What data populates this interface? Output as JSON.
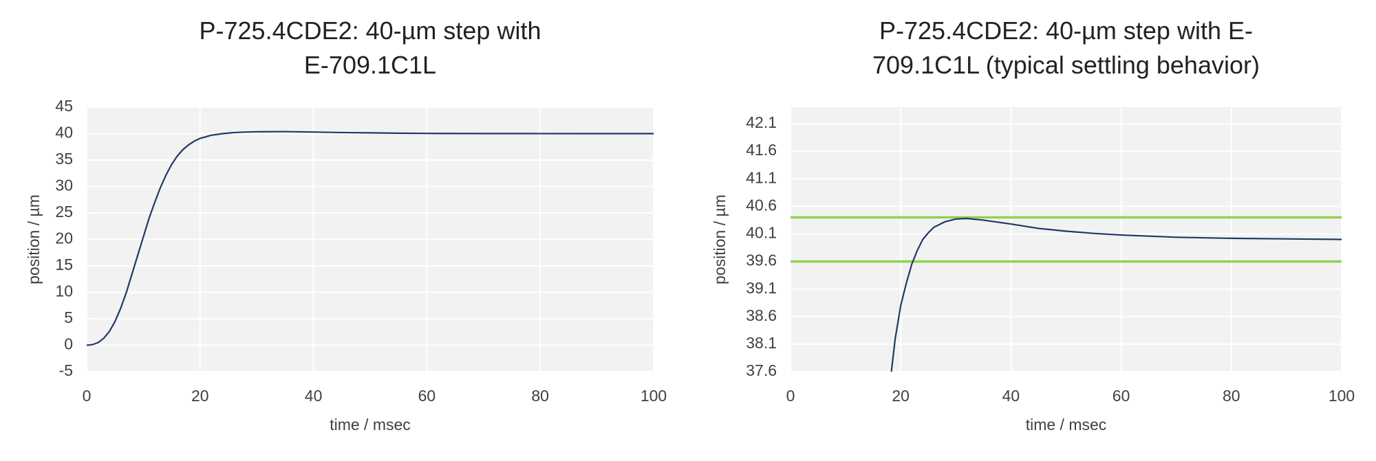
{
  "chart_data": [
    {
      "type": "line",
      "title": "P-725.4CDE2: 40-µm step with E-709.1C1L",
      "x_label": "time / msec",
      "y_label": "position / µm",
      "xlim": [
        0,
        100
      ],
      "xticks": [
        0,
        20,
        40,
        60,
        80,
        100
      ],
      "ylim": [
        -5,
        45
      ],
      "yticks": [
        -5,
        0,
        5,
        10,
        15,
        20,
        25,
        30,
        35,
        40,
        45
      ],
      "grid": true,
      "series": [
        {
          "color": "#203864",
          "x": [
            0,
            1,
            2,
            3,
            4,
            5,
            6,
            7,
            8,
            9,
            10,
            11,
            12,
            13,
            14,
            15,
            16,
            17,
            18,
            19,
            20,
            22,
            24,
            26,
            28,
            30,
            35,
            40,
            45,
            50,
            55,
            60,
            70,
            80,
            90,
            100
          ],
          "values": [
            0,
            0.1,
            0.5,
            1.3,
            2.6,
            4.5,
            7,
            10,
            13.5,
            17,
            20.5,
            24,
            27,
            29.8,
            32.2,
            34.2,
            35.8,
            37,
            37.9,
            38.6,
            39.1,
            39.7,
            40,
            40.2,
            40.3,
            40.35,
            40.38,
            40.3,
            40.2,
            40.15,
            40.08,
            40.04,
            40.02,
            40.01,
            40,
            40
          ]
        }
      ]
    },
    {
      "type": "line",
      "title": "P-725.4CDE2: 40-µm step with E-709.1C1L (typical settling behavior)",
      "x_label": "time / msec",
      "y_label": "position / µm",
      "xlim": [
        0,
        100
      ],
      "xticks": [
        0,
        20,
        40,
        60,
        80,
        100
      ],
      "ylim": [
        37.6,
        42.4
      ],
      "yticks": [
        37.6,
        38.1,
        38.6,
        39.1,
        39.6,
        40.1,
        40.6,
        41.1,
        41.6,
        42.1
      ],
      "grid": true,
      "series": [
        {
          "color": "#92d050",
          "x": [
            0,
            100
          ],
          "values": [
            40.4,
            40.4
          ]
        },
        {
          "color": "#92d050",
          "x": [
            0,
            100
          ],
          "values": [
            39.6,
            39.6
          ]
        },
        {
          "color": "#203864",
          "x": [
            18.3,
            19,
            20,
            21,
            22,
            23,
            24,
            25,
            26,
            28,
            30,
            32,
            35,
            40,
            45,
            50,
            55,
            60,
            70,
            80,
            90,
            100
          ],
          "values": [
            37.6,
            38.2,
            38.8,
            39.2,
            39.55,
            39.8,
            40,
            40.12,
            40.22,
            40.32,
            40.37,
            40.38,
            40.35,
            40.28,
            40.2,
            40.15,
            40.11,
            40.08,
            40.04,
            40.02,
            40.01,
            40
          ]
        }
      ]
    }
  ]
}
